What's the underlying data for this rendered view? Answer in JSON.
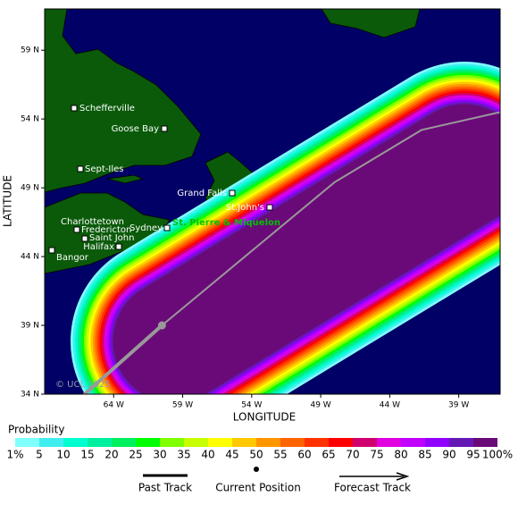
{
  "chart_data": {
    "type": "track",
    "xlabel": "LONGITUDE",
    "ylabel": "LATITUDE",
    "xlim": [
      -69,
      -36
    ],
    "ylim": [
      34,
      62
    ],
    "xticks": [
      {
        "value": -64,
        "label": "64 W"
      },
      {
        "value": -59,
        "label": "59 W"
      },
      {
        "value": -54,
        "label": "54 W"
      },
      {
        "value": -49,
        "label": "49 W"
      },
      {
        "value": -44,
        "label": "44 W"
      },
      {
        "value": -39,
        "label": "39 W"
      }
    ],
    "yticks": [
      {
        "value": 34,
        "label": "34 N"
      },
      {
        "value": 39,
        "label": "39 N"
      },
      {
        "value": 44,
        "label": "44 N"
      },
      {
        "value": 49,
        "label": "49 N"
      },
      {
        "value": 54,
        "label": "54 N"
      },
      {
        "value": 59,
        "label": "59 N"
      }
    ],
    "past_track": {
      "name": "Past Track",
      "x": [
        -66.1,
        -60.5
      ],
      "y": [
        34,
        39
      ]
    },
    "current_position": {
      "name": "Current Position",
      "x": -60.5,
      "y": 39
    },
    "forecast_track": {
      "name": "Forecast Track",
      "x": [
        -60.5,
        -48,
        -41.7,
        -36
      ],
      "y": [
        39,
        49.4,
        53.2,
        54.5
      ]
    },
    "probability": {
      "title": "Probability",
      "levels": [
        {
          "value": 1,
          "label": "1%"
        },
        5,
        10,
        15,
        20,
        25,
        30,
        35,
        40,
        45,
        50,
        55,
        60,
        65,
        70,
        75,
        80,
        85,
        90,
        95,
        {
          "value": 100,
          "label": "100%"
        }
      ],
      "colors": [
        "#80ffff",
        "#40eef0",
        "#00ffd0",
        "#00f0a0",
        "#00f060",
        "#00ff00",
        "#80ff00",
        "#c8ff00",
        "#ffff00",
        "#ffc800",
        "#ff9600",
        "#ff6400",
        "#ff3200",
        "#ff0000",
        "#d0006e",
        "#e000e0",
        "#c000ff",
        "#9000ff",
        "#6418b4",
        "#6a0a78"
      ]
    },
    "places": [
      "Schefferville",
      "Goose Bay",
      "Sept-Iles",
      "Grand Falls",
      "St.John's",
      "Charlottetown",
      "Fredericton",
      "Sydney",
      "Saint John",
      "Halifax",
      "Bangor"
    ],
    "region_label": "St. Pierre & Miquelon",
    "credit": "© UCL 2025"
  }
}
